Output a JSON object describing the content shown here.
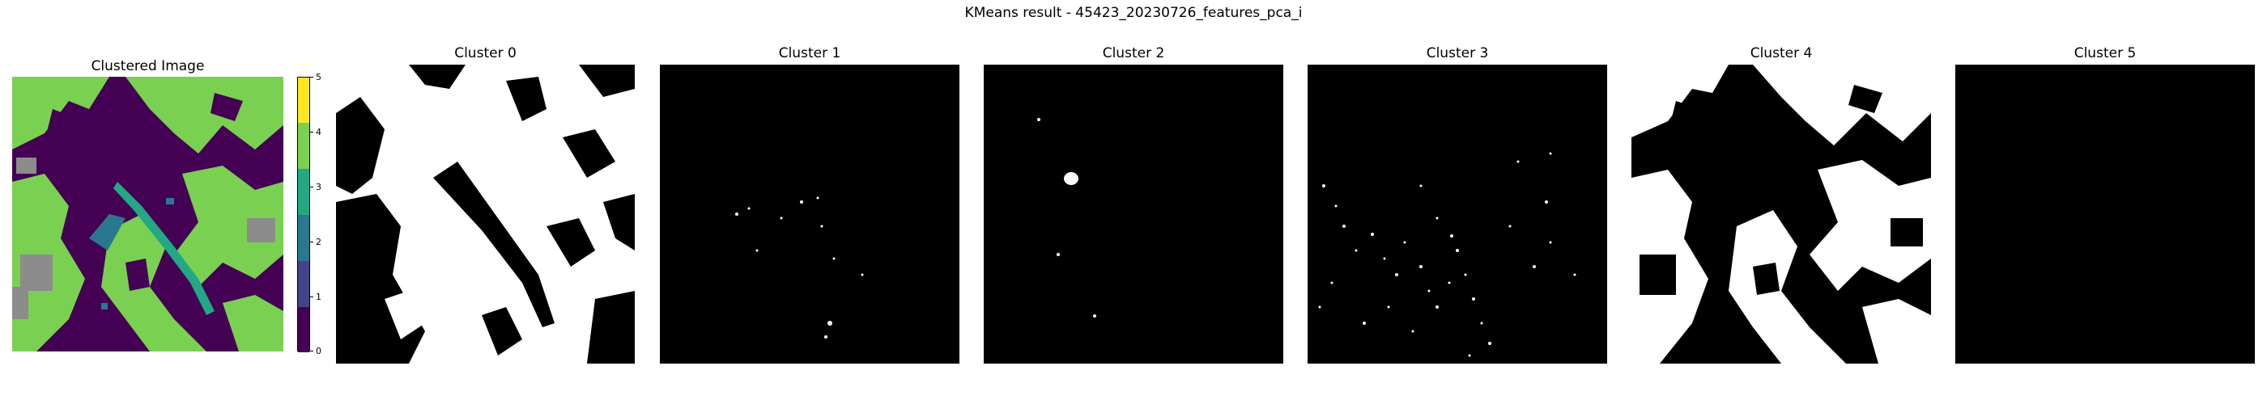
{
  "figure": {
    "title": "KMeans result - 45423_20230726_features_pca_i"
  },
  "panels": {
    "clustered": {
      "title": "Clustered Image"
    },
    "cluster0": {
      "title": "Cluster 0"
    },
    "cluster1": {
      "title": "Cluster 1"
    },
    "cluster2": {
      "title": "Cluster 2"
    },
    "cluster3": {
      "title": "Cluster 3"
    },
    "cluster4": {
      "title": "Cluster 4"
    },
    "cluster5": {
      "title": "Cluster 5"
    }
  },
  "colorbar": {
    "ticks": [
      "0",
      "1",
      "2",
      "3",
      "4",
      "5"
    ],
    "colors": [
      "#440154",
      "#414487",
      "#2a788e",
      "#22a884",
      "#7ad151",
      "#fde725"
    ]
  },
  "palette": {
    "background": "#440154",
    "vegetation": "#7ad151",
    "grey": "#8c8c8c",
    "teal": "#2a788e",
    "mask_on": "#ffffff",
    "mask_off": "#000000"
  }
}
